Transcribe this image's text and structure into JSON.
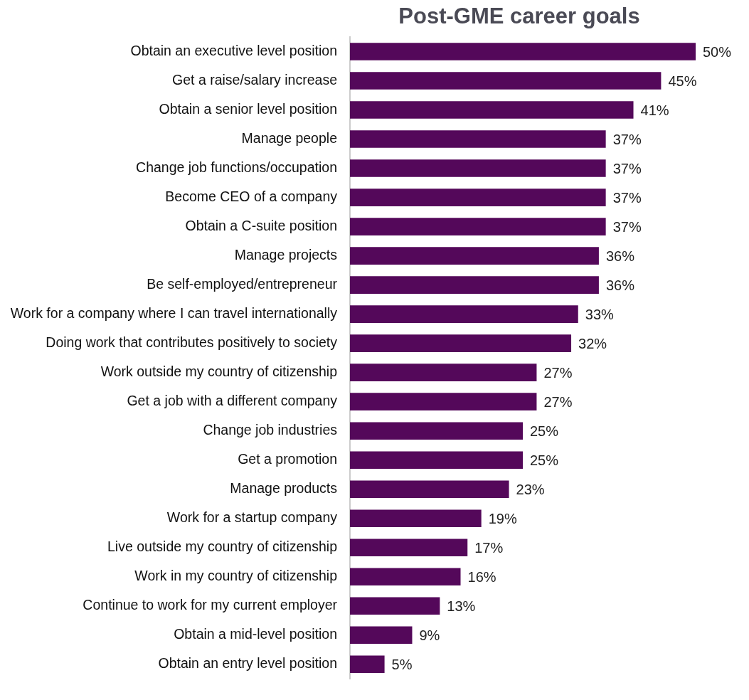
{
  "chart_data": {
    "type": "bar",
    "orientation": "horizontal",
    "title": "Post-GME career goals",
    "categories": [
      "Obtain an executive level position",
      "Get a raise/salary increase",
      "Obtain a senior level position",
      "Manage people",
      "Change job functions/occupation",
      "Become CEO of a company",
      "Obtain a C-suite position",
      "Manage projects",
      "Be self-employed/entrepreneur",
      "Work for a company where I can travel internationally",
      "Doing work that contributes positively to society",
      "Work outside my country of citizenship",
      "Get a job with a different company",
      "Change job industries",
      "Get a promotion",
      "Manage products",
      "Work for a startup company",
      "Live outside my country of citizenship",
      "Work in my country of citizenship",
      "Continue to work for my current employer",
      "Obtain a mid-level position",
      "Obtain an entry level position"
    ],
    "values": [
      50,
      45,
      41,
      37,
      37,
      37,
      37,
      36,
      36,
      33,
      32,
      27,
      27,
      25,
      25,
      23,
      19,
      17,
      16,
      13,
      9,
      5
    ],
    "value_labels": [
      "50%",
      "45%",
      "41%",
      "37%",
      "37%",
      "37%",
      "37%",
      "36%",
      "36%",
      "33%",
      "32%",
      "27%",
      "27%",
      "25%",
      "25%",
      "23%",
      "19%",
      "17%",
      "16%",
      "13%",
      "9%",
      "5%"
    ],
    "color": "#54085a",
    "legend": false
  }
}
